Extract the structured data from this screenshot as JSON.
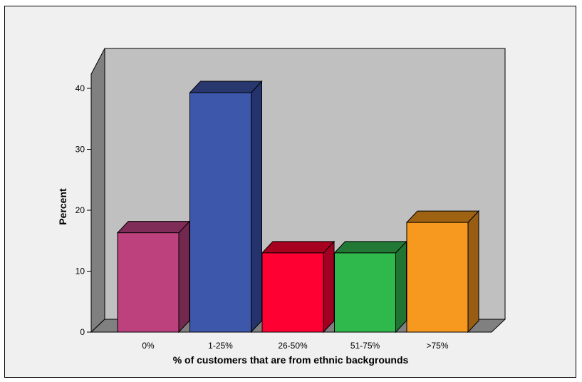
{
  "chart_data": {
    "type": "bar",
    "title": "",
    "xlabel": "% of customers that are from ethnic backgrounds",
    "ylabel": "Percent",
    "categories": [
      "0%",
      "1-25%",
      "26-50%",
      "51-75%",
      ">75%"
    ],
    "values": [
      16.3,
      39.3,
      13.0,
      13.0,
      18.0
    ],
    "ylim": [
      0,
      40
    ],
    "yticks": [
      0,
      10,
      20,
      30,
      40
    ],
    "bar_colors": [
      "#bc417c",
      "#3d57ab",
      "#ff0033",
      "#2fb84b",
      "#f8991f"
    ],
    "bar_side_colors": [
      "#732850",
      "#24336b",
      "#a10021",
      "#1e7430",
      "#985d12"
    ],
    "bar_top_colors": [
      "#802c58",
      "#28386f",
      "#a8001f",
      "#217935",
      "#9e6213"
    ],
    "wall_color": "#c0c0c0",
    "floor_color": "#808080",
    "grid": false,
    "legend": "none"
  }
}
